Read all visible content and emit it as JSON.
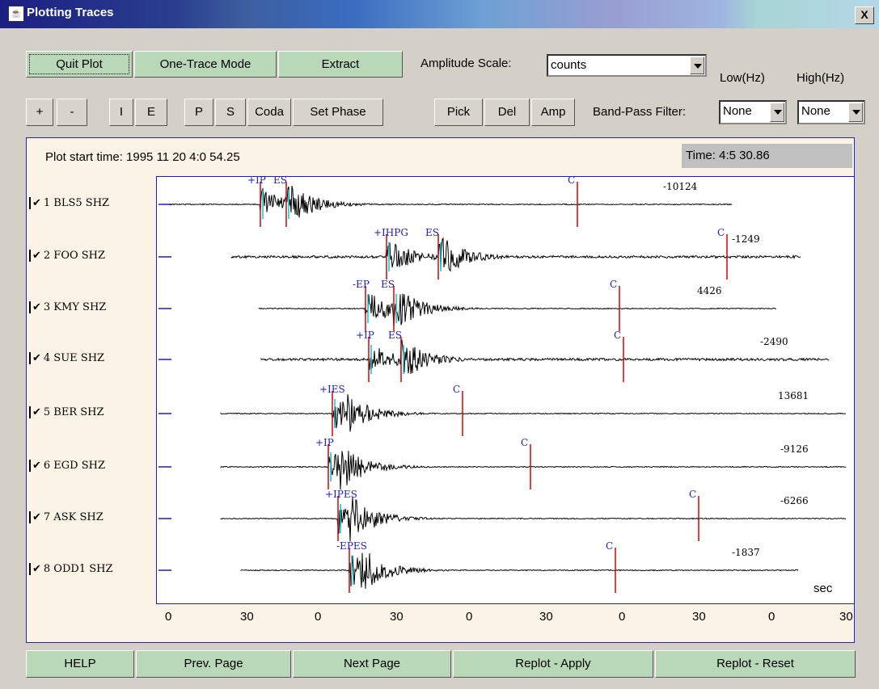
{
  "window": {
    "title": "Plotting Traces",
    "close": "X"
  },
  "toolbar1": {
    "quit": "Quit Plot",
    "one_trace": "One-Trace Mode",
    "extract": "Extract",
    "amp_scale_label": "Amplitude Scale:",
    "amp_scale_value": "counts",
    "low_hz": "Low(Hz)",
    "high_hz": "High(Hz)"
  },
  "toolbar2": {
    "plus": "+",
    "minus": "-",
    "i": "I",
    "e": "E",
    "p": "P",
    "s": "S",
    "coda": "Coda",
    "set_phase": "Set Phase",
    "pick": "Pick",
    "del": "Del",
    "amp": "Amp",
    "bandpass_label": "Band-Pass Filter:",
    "low_value": "None",
    "high_value": "None"
  },
  "plot": {
    "start_time": "Plot start time: 1995 11 20  4:0 54.25",
    "cursor_time": "Time: 4:5  30.86",
    "unit": "sec",
    "ticks": [
      "0",
      "30",
      "0",
      "30",
      "0",
      "30",
      "0",
      "30",
      "0",
      "30"
    ]
  },
  "traces": [
    {
      "label": "1 BLS5 SHZ",
      "amp": "-10124",
      "picks": [
        {
          "t": "+IP",
          "x": 322
        },
        {
          "t": "ES",
          "x": 354
        },
        {
          "t": "C",
          "x": 714
        }
      ]
    },
    {
      "label": "2 FOO  SHZ",
      "amp": "-1249",
      "picks": [
        {
          "t": "+IHPG",
          "x": 478
        },
        {
          "t": "ES",
          "x": 542
        },
        {
          "t": "C",
          "x": 899
        }
      ]
    },
    {
      "label": "3 KMY  SHZ",
      "amp": "4426",
      "picks": [
        {
          "t": "-EP",
          "x": 452
        },
        {
          "t": "ES",
          "x": 487
        },
        {
          "t": "C",
          "x": 766
        }
      ]
    },
    {
      "label": "4 SUE  SHZ",
      "amp": "-2490",
      "picks": [
        {
          "t": "+IP",
          "x": 456
        },
        {
          "t": "ES",
          "x": 496
        },
        {
          "t": "C",
          "x": 771
        }
      ]
    },
    {
      "label": "5 BER  SHZ",
      "amp": "13681",
      "picks": [
        {
          "t": "+IES",
          "x": 411
        },
        {
          "t": "C",
          "x": 572
        }
      ]
    },
    {
      "label": "6 EGD  SHZ",
      "amp": "-9126",
      "picks": [
        {
          "t": "+IP",
          "x": 406
        },
        {
          "t": "C",
          "x": 656
        }
      ]
    },
    {
      "label": "7 ASK  SHZ",
      "amp": "-6266",
      "picks": [
        {
          "t": "+IPES",
          "x": 418
        },
        {
          "t": "C",
          "x": 864
        }
      ]
    },
    {
      "label": "8 ODD1 SHZ",
      "amp": "-1837",
      "picks": [
        {
          "t": "-EPES",
          "x": 432
        },
        {
          "t": "C",
          "x": 761
        }
      ]
    }
  ],
  "bottom": {
    "help": "HELP",
    "prev": "Prev. Page",
    "next": "Next Page",
    "apply": "Replot - Apply",
    "reset": "Replot -  Reset"
  },
  "colors": {
    "pick": "#e00000",
    "pick_text": "#1a1ad8",
    "p_marker": "#00c8d8",
    "trace": "#000000"
  }
}
